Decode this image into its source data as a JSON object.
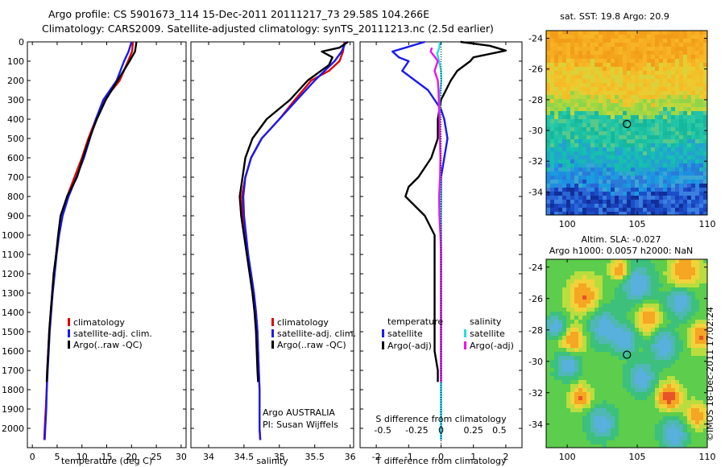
{
  "header": {
    "title_line1": "Argo profile: CS 5901673_114 15-Dec-2011 20111217_73 29.58S 104.266E",
    "title_line2": "Climatology: CARS2009. Satellite-adjusted climatology: synTS_20111213.nc (2.5d earlier)"
  },
  "watermark": "©IMOS 18-Dec-2011 17:02:24",
  "colors": {
    "climatology": "#e00000",
    "satellite": "#1a1aee",
    "argo": "#000000",
    "sal_satellite": "#22dddd",
    "sal_argo": "#ee11ee"
  },
  "chart_data": [
    {
      "type": "line",
      "name": "temperature",
      "xlabel": "temperature (deg C)",
      "ylabel": "",
      "xlim": [
        -1,
        31
      ],
      "ylim": [
        2100,
        0
      ],
      "xticks": [
        0,
        5,
        10,
        15,
        20,
        25,
        30
      ],
      "yticks": [
        0,
        100,
        200,
        300,
        400,
        500,
        600,
        700,
        800,
        900,
        1000,
        1100,
        1200,
        1300,
        1400,
        1500,
        1600,
        1700,
        1800,
        1900,
        2000
      ],
      "legend": [
        "climatology",
        "satellite-adj. clim.",
        "Argo(..raw -QC)"
      ],
      "series": [
        {
          "name": "climatology",
          "color": "#e00000",
          "points": [
            [
              20.3,
              0
            ],
            [
              20.1,
              50
            ],
            [
              19.3,
              100
            ],
            [
              17.6,
              200
            ],
            [
              14.5,
              300
            ],
            [
              12.8,
              400
            ],
            [
              11.3,
              500
            ],
            [
              10.0,
              600
            ],
            [
              8.5,
              700
            ],
            [
              7.0,
              800
            ],
            [
              6.0,
              900
            ],
            [
              5.3,
              1000
            ],
            [
              4.8,
              1100
            ],
            [
              4.4,
              1200
            ],
            [
              4.0,
              1300
            ],
            [
              3.7,
              1400
            ],
            [
              3.4,
              1500
            ],
            [
              3.2,
              1600
            ],
            [
              3.0,
              1700
            ],
            [
              2.9,
              1800
            ],
            [
              2.7,
              1900
            ],
            [
              2.5,
              2000
            ],
            [
              2.4,
              2060
            ]
          ]
        },
        {
          "name": "satellite-adj. clim.",
          "color": "#1a1aee",
          "points": [
            [
              20.0,
              0
            ],
            [
              19.4,
              50
            ],
            [
              18.5,
              100
            ],
            [
              17.0,
              200
            ],
            [
              14.3,
              300
            ],
            [
              12.8,
              400
            ],
            [
              11.6,
              500
            ],
            [
              10.4,
              600
            ],
            [
              8.9,
              700
            ],
            [
              7.3,
              800
            ],
            [
              6.1,
              900
            ],
            [
              5.4,
              1000
            ],
            [
              4.9,
              1100
            ],
            [
              4.5,
              1200
            ],
            [
              4.1,
              1300
            ],
            [
              3.8,
              1400
            ],
            [
              3.5,
              1500
            ],
            [
              3.3,
              1600
            ],
            [
              3.1,
              1700
            ],
            [
              2.9,
              1800
            ],
            [
              2.8,
              1900
            ],
            [
              2.6,
              2000
            ],
            [
              2.5,
              2060
            ]
          ]
        },
        {
          "name": "Argo(..raw -QC)",
          "color": "#000000",
          "points": [
            [
              21.0,
              0
            ],
            [
              20.7,
              50
            ],
            [
              19.6,
              100
            ],
            [
              17.2,
              200
            ],
            [
              14.8,
              300
            ],
            [
              13.0,
              400
            ],
            [
              11.5,
              500
            ],
            [
              10.2,
              600
            ],
            [
              9.0,
              700
            ],
            [
              7.0,
              800
            ],
            [
              5.7,
              900
            ],
            [
              5.2,
              1000
            ],
            [
              4.8,
              1100
            ],
            [
              4.3,
              1200
            ],
            [
              4.0,
              1300
            ],
            [
              3.7,
              1400
            ],
            [
              3.4,
              1500
            ],
            [
              3.2,
              1600
            ],
            [
              3.0,
              1700
            ],
            [
              2.9,
              1760
            ]
          ]
        }
      ]
    },
    {
      "type": "line",
      "name": "salinity",
      "xlabel": "salinity",
      "xlim": [
        33.75,
        36.05
      ],
      "xticks": [
        34,
        34.5,
        35,
        35.5,
        36
      ],
      "legend": [
        "climatology",
        "satellite-adj. clim.",
        "Argo(..raw -QC)"
      ],
      "annotation": [
        "Argo AUSTRALIA",
        "PI: Susan Wijffels"
      ],
      "series": [
        {
          "name": "climatology",
          "color": "#e00000",
          "points": [
            [
              35.92,
              0
            ],
            [
              35.9,
              50
            ],
            [
              35.85,
              100
            ],
            [
              35.7,
              150
            ],
            [
              35.45,
              200
            ],
            [
              35.22,
              300
            ],
            [
              35.0,
              400
            ],
            [
              34.75,
              500
            ],
            [
              34.6,
              600
            ],
            [
              34.52,
              700
            ],
            [
              34.47,
              800
            ],
            [
              34.48,
              900
            ],
            [
              34.52,
              1000
            ],
            [
              34.55,
              1100
            ],
            [
              34.6,
              1200
            ],
            [
              34.64,
              1300
            ],
            [
              34.67,
              1400
            ],
            [
              34.69,
              1500
            ],
            [
              34.7,
              1600
            ],
            [
              34.71,
              1700
            ],
            [
              34.72,
              1800
            ],
            [
              34.72,
              1900
            ],
            [
              34.72,
              2000
            ],
            [
              34.73,
              2060
            ]
          ]
        },
        {
          "name": "satellite-adj. clim.",
          "color": "#1a1aee",
          "points": [
            [
              35.94,
              0
            ],
            [
              35.88,
              50
            ],
            [
              35.78,
              100
            ],
            [
              35.5,
              200
            ],
            [
              35.25,
              300
            ],
            [
              35.0,
              400
            ],
            [
              34.75,
              500
            ],
            [
              34.6,
              600
            ],
            [
              34.52,
              700
            ],
            [
              34.49,
              800
            ],
            [
              34.5,
              900
            ],
            [
              34.53,
              1000
            ],
            [
              34.56,
              1100
            ],
            [
              34.6,
              1200
            ],
            [
              34.64,
              1300
            ],
            [
              34.67,
              1400
            ],
            [
              34.69,
              1500
            ],
            [
              34.7,
              1600
            ],
            [
              34.71,
              1700
            ],
            [
              34.72,
              1800
            ],
            [
              34.72,
              1900
            ],
            [
              34.72,
              2000
            ],
            [
              34.73,
              2060
            ]
          ]
        },
        {
          "name": "Argo(..raw -QC)",
          "color": "#000000",
          "points": [
            [
              35.97,
              0
            ],
            [
              35.85,
              30
            ],
            [
              35.6,
              50
            ],
            [
              35.75,
              80
            ],
            [
              35.7,
              120
            ],
            [
              35.4,
              200
            ],
            [
              35.15,
              300
            ],
            [
              34.82,
              400
            ],
            [
              34.62,
              500
            ],
            [
              34.52,
              600
            ],
            [
              34.48,
              700
            ],
            [
              34.44,
              800
            ],
            [
              34.46,
              900
            ],
            [
              34.5,
              1000
            ],
            [
              34.54,
              1100
            ],
            [
              34.58,
              1200
            ],
            [
              34.62,
              1300
            ],
            [
              34.65,
              1400
            ],
            [
              34.67,
              1500
            ],
            [
              34.68,
              1600
            ],
            [
              34.69,
              1700
            ],
            [
              34.7,
              1760
            ]
          ]
        }
      ]
    },
    {
      "type": "line",
      "name": "differences",
      "xlabel": "T difference from climatology",
      "top_label": "S difference from climatology",
      "xlim": [
        -2.5,
        2.5
      ],
      "xticks": [
        -2,
        -1,
        0,
        1,
        2
      ],
      "s_ticks": [
        "-0.5",
        "-0.25",
        "0",
        "0.25",
        "0.5"
      ],
      "legend_titles": [
        "temperature",
        "salinity"
      ],
      "legend": [
        "satellite",
        "Argo(-adj)",
        "satellite",
        "Argo(-adj)"
      ],
      "series": [
        {
          "name": "temperature satellite",
          "color": "#1a1aee",
          "points": [
            [
              -0.5,
              0
            ],
            [
              -1.5,
              50
            ],
            [
              -1.3,
              80
            ],
            [
              -1.0,
              100
            ],
            [
              -1.2,
              150
            ],
            [
              -0.8,
              200
            ],
            [
              -0.4,
              250
            ],
            [
              -0.2,
              300
            ],
            [
              0.0,
              350
            ],
            [
              0.1,
              400
            ],
            [
              0.2,
              500
            ],
            [
              0.1,
              600
            ],
            [
              0.0,
              700
            ],
            [
              0.0,
              800
            ],
            [
              0.0,
              900
            ],
            [
              0.0,
              1000
            ],
            [
              0.0,
              1200
            ],
            [
              0.0,
              1400
            ],
            [
              0.0,
              1600
            ],
            [
              0.0,
              1800
            ],
            [
              0.0,
              2000
            ],
            [
              0.0,
              2060
            ]
          ]
        },
        {
          "name": "temperature Argo(-adj)",
          "color": "#000000",
          "points": [
            [
              0.6,
              0
            ],
            [
              1.5,
              20
            ],
            [
              2.0,
              45
            ],
            [
              1.0,
              80
            ],
            [
              0.9,
              100
            ],
            [
              0.5,
              150
            ],
            [
              0.3,
              200
            ],
            [
              0.0,
              300
            ],
            [
              -0.1,
              400
            ],
            [
              -0.1,
              500
            ],
            [
              -0.3,
              600
            ],
            [
              -0.7,
              700
            ],
            [
              -1.0,
              750
            ],
            [
              -1.1,
              800
            ],
            [
              -0.5,
              900
            ],
            [
              -0.2,
              1000
            ],
            [
              -0.2,
              1100
            ],
            [
              -0.2,
              1200
            ],
            [
              -0.2,
              1400
            ],
            [
              -0.2,
              1600
            ],
            [
              -0.1,
              1700
            ],
            [
              -0.1,
              1760
            ]
          ]
        },
        {
          "name": "salinity satellite",
          "color": "#22dddd",
          "points": [
            [
              -0.04,
              0
            ],
            [
              -0.05,
              30
            ],
            [
              -0.12,
              60
            ],
            [
              -0.06,
              100
            ],
            [
              0.0,
              150
            ],
            [
              0.01,
              200
            ],
            [
              -0.02,
              250
            ],
            [
              -0.05,
              300
            ],
            [
              -0.04,
              400
            ],
            [
              -0.03,
              500
            ],
            [
              -0.02,
              600
            ],
            [
              -0.01,
              800
            ],
            [
              0.0,
              1000
            ],
            [
              0.0,
              1200
            ],
            [
              0.0,
              1500
            ],
            [
              0.0,
              1800
            ],
            [
              0.0,
              2000
            ],
            [
              0.0,
              2060
            ]
          ]
        },
        {
          "name": "salinity Argo(-adj)",
          "color": "#ee11ee",
          "points": [
            [
              -0.28,
              30
            ],
            [
              -0.32,
              50
            ],
            [
              -0.18,
              80
            ],
            [
              -0.1,
              100
            ],
            [
              -0.2,
              150
            ],
            [
              -0.1,
              200
            ],
            [
              -0.08,
              250
            ],
            [
              -0.07,
              300
            ],
            [
              -0.05,
              400
            ],
            [
              -0.03,
              500
            ],
            [
              -0.02,
              600
            ],
            [
              -0.03,
              700
            ],
            [
              -0.06,
              800
            ],
            [
              -0.05,
              900
            ],
            [
              -0.02,
              1000
            ],
            [
              0.0,
              1100
            ],
            [
              0.0,
              1300
            ],
            [
              0.0,
              1500
            ],
            [
              0.0,
              1700
            ],
            [
              0.0,
              1760
            ]
          ]
        }
      ]
    },
    {
      "type": "heatmap",
      "name": "sst_map",
      "title": "sat. SST: 19.8 Argo: 20.9",
      "xlim": [
        98.5,
        110
      ],
      "ylim": [
        -35.5,
        -23.5
      ],
      "xticks": [
        100,
        105,
        110
      ],
      "yticks": [
        -24,
        -26,
        -28,
        -30,
        -32,
        -34
      ],
      "marker": [
        104.266,
        -29.58
      ]
    },
    {
      "type": "heatmap",
      "name": "sla_map",
      "title": "Altim. SLA: -0.027",
      "subtitle": "Argo h1000: 0.0057 h2000: NaN",
      "xlim": [
        98.5,
        110
      ],
      "ylim": [
        -35.5,
        -23.5
      ],
      "xticks": [
        100,
        105,
        110
      ],
      "yticks": [
        -24,
        -26,
        -28,
        -30,
        -32,
        -34
      ],
      "marker": [
        104.266,
        -29.58
      ]
    }
  ]
}
